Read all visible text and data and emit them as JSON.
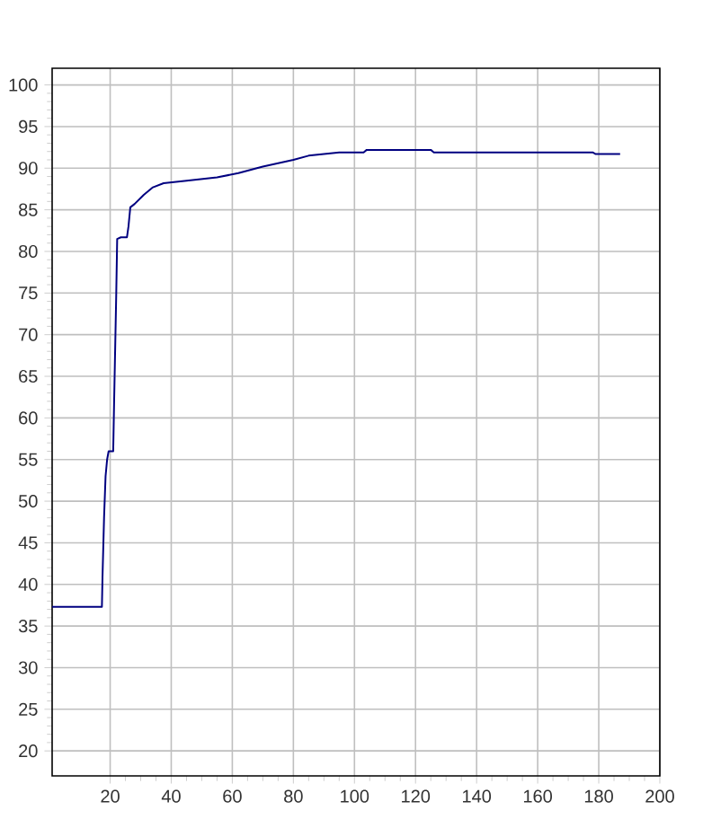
{
  "chart_data": {
    "type": "line",
    "xlim": [
      1,
      200
    ],
    "ylim": [
      17,
      102
    ],
    "xticks": [
      20,
      40,
      60,
      80,
      100,
      120,
      140,
      160,
      180,
      200
    ],
    "yticks": [
      20,
      25,
      30,
      35,
      40,
      45,
      50,
      55,
      60,
      65,
      70,
      75,
      80,
      85,
      90,
      95,
      100
    ],
    "grid": true,
    "marker": "none",
    "line_style": "solid",
    "series": [
      {
        "color": "#000080",
        "x": [
          1,
          17.3,
          17.5,
          18,
          18.5,
          19,
          19.5,
          21,
          21.3,
          22,
          22.3,
          23.5,
          25.5,
          26,
          26.6,
          28,
          31,
          34,
          37.5,
          45,
          55,
          62,
          70,
          80,
          85,
          95,
          103,
          104,
          125,
          126,
          178,
          179,
          187
        ],
        "values": [
          37.3,
          37.3,
          41,
          48,
          53,
          55,
          56,
          56,
          62,
          75,
          81.5,
          81.7,
          81.7,
          83,
          85.3,
          85.7,
          86.8,
          87.7,
          88.2,
          88.5,
          88.9,
          89.4,
          90.2,
          91,
          91.5,
          91.9,
          91.9,
          92.2,
          92.2,
          91.9,
          91.9,
          91.7,
          91.7
        ]
      }
    ]
  }
}
